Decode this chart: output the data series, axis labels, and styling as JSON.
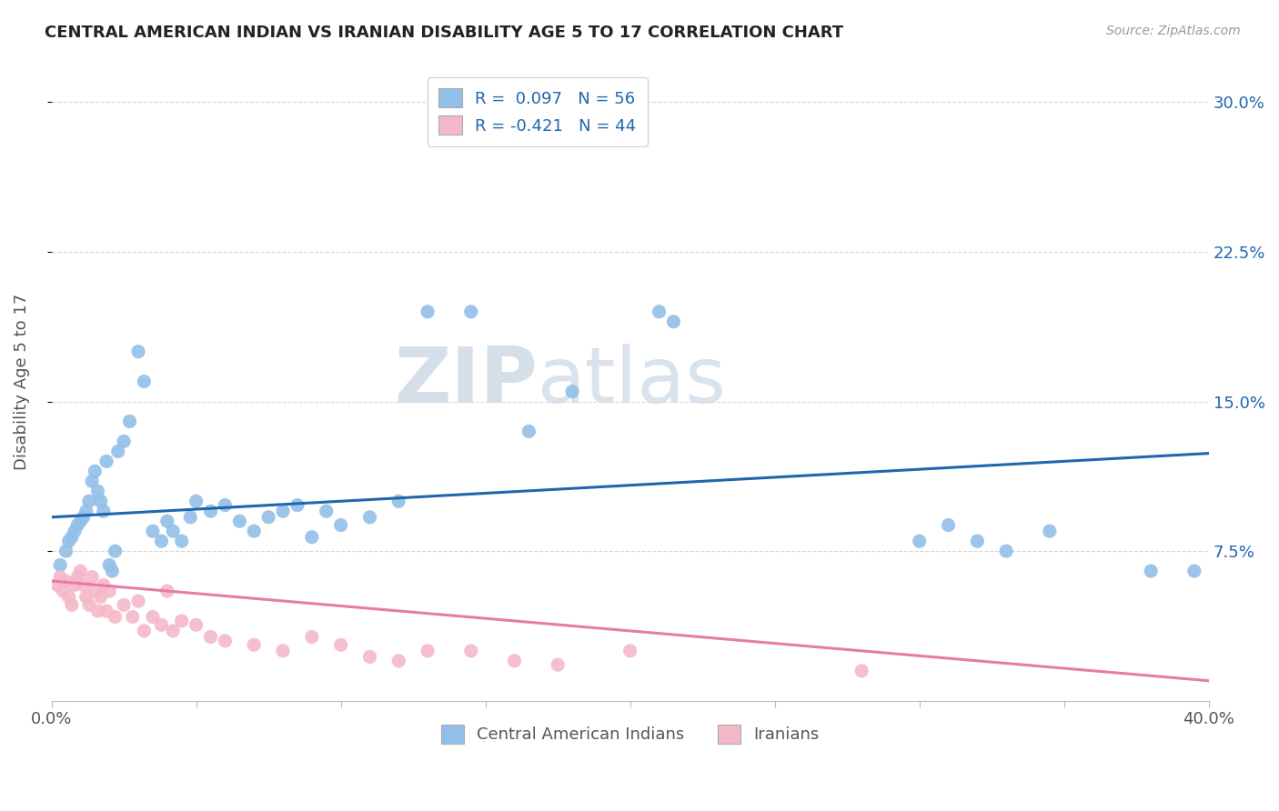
{
  "title": "CENTRAL AMERICAN INDIAN VS IRANIAN DISABILITY AGE 5 TO 17 CORRELATION CHART",
  "source": "Source: ZipAtlas.com",
  "ylabel": "Disability Age 5 to 17",
  "xlim": [
    0.0,
    0.4
  ],
  "ylim": [
    0.0,
    0.32
  ],
  "yticks": [
    0.075,
    0.15,
    0.225,
    0.3
  ],
  "ytick_labels": [
    "7.5%",
    "15.0%",
    "22.5%",
    "30.0%"
  ],
  "xticks": [
    0.0,
    0.05,
    0.1,
    0.15,
    0.2,
    0.25,
    0.3,
    0.35,
    0.4
  ],
  "legend_label1": "Central American Indians",
  "legend_label2": "Iranians",
  "color_blue": "#92bfe8",
  "color_pink": "#f4b8c8",
  "color_blue_line": "#2166ac",
  "color_pink_line": "#e87aaa",
  "color_legend_text": "#2166ac",
  "background": "#ffffff",
  "watermark_zip": "ZIP",
  "watermark_atlas": "atlas",
  "blue_line_y_start": 0.092,
  "blue_line_y_end": 0.124,
  "pink_line_y_start": 0.06,
  "pink_line_y_end": 0.01,
  "blue_points_x": [
    0.003,
    0.005,
    0.006,
    0.007,
    0.008,
    0.009,
    0.01,
    0.011,
    0.012,
    0.013,
    0.014,
    0.015,
    0.016,
    0.017,
    0.018,
    0.019,
    0.02,
    0.021,
    0.022,
    0.023,
    0.025,
    0.027,
    0.03,
    0.032,
    0.035,
    0.038,
    0.04,
    0.042,
    0.045,
    0.048,
    0.05,
    0.055,
    0.06,
    0.065,
    0.07,
    0.075,
    0.08,
    0.085,
    0.09,
    0.095,
    0.1,
    0.11,
    0.12,
    0.13,
    0.145,
    0.165,
    0.18,
    0.21,
    0.215,
    0.3,
    0.31,
    0.32,
    0.33,
    0.345,
    0.38,
    0.395
  ],
  "blue_points_y": [
    0.068,
    0.075,
    0.08,
    0.082,
    0.085,
    0.088,
    0.09,
    0.092,
    0.095,
    0.1,
    0.11,
    0.115,
    0.105,
    0.1,
    0.095,
    0.12,
    0.068,
    0.065,
    0.075,
    0.125,
    0.13,
    0.14,
    0.175,
    0.16,
    0.085,
    0.08,
    0.09,
    0.085,
    0.08,
    0.092,
    0.1,
    0.095,
    0.098,
    0.09,
    0.085,
    0.092,
    0.095,
    0.098,
    0.082,
    0.095,
    0.088,
    0.092,
    0.1,
    0.195,
    0.195,
    0.135,
    0.155,
    0.195,
    0.19,
    0.08,
    0.088,
    0.08,
    0.075,
    0.085,
    0.065,
    0.065
  ],
  "pink_points_x": [
    0.002,
    0.003,
    0.004,
    0.005,
    0.006,
    0.007,
    0.008,
    0.009,
    0.01,
    0.011,
    0.012,
    0.013,
    0.014,
    0.015,
    0.016,
    0.017,
    0.018,
    0.019,
    0.02,
    0.022,
    0.025,
    0.028,
    0.03,
    0.032,
    0.035,
    0.038,
    0.04,
    0.042,
    0.045,
    0.05,
    0.055,
    0.06,
    0.07,
    0.08,
    0.09,
    0.1,
    0.11,
    0.12,
    0.13,
    0.145,
    0.16,
    0.175,
    0.2,
    0.28
  ],
  "pink_points_y": [
    0.058,
    0.062,
    0.055,
    0.06,
    0.052,
    0.048,
    0.058,
    0.062,
    0.065,
    0.058,
    0.052,
    0.048,
    0.062,
    0.055,
    0.045,
    0.052,
    0.058,
    0.045,
    0.055,
    0.042,
    0.048,
    0.042,
    0.05,
    0.035,
    0.042,
    0.038,
    0.055,
    0.035,
    0.04,
    0.038,
    0.032,
    0.03,
    0.028,
    0.025,
    0.032,
    0.028,
    0.022,
    0.02,
    0.025,
    0.025,
    0.02,
    0.018,
    0.025,
    0.015
  ]
}
